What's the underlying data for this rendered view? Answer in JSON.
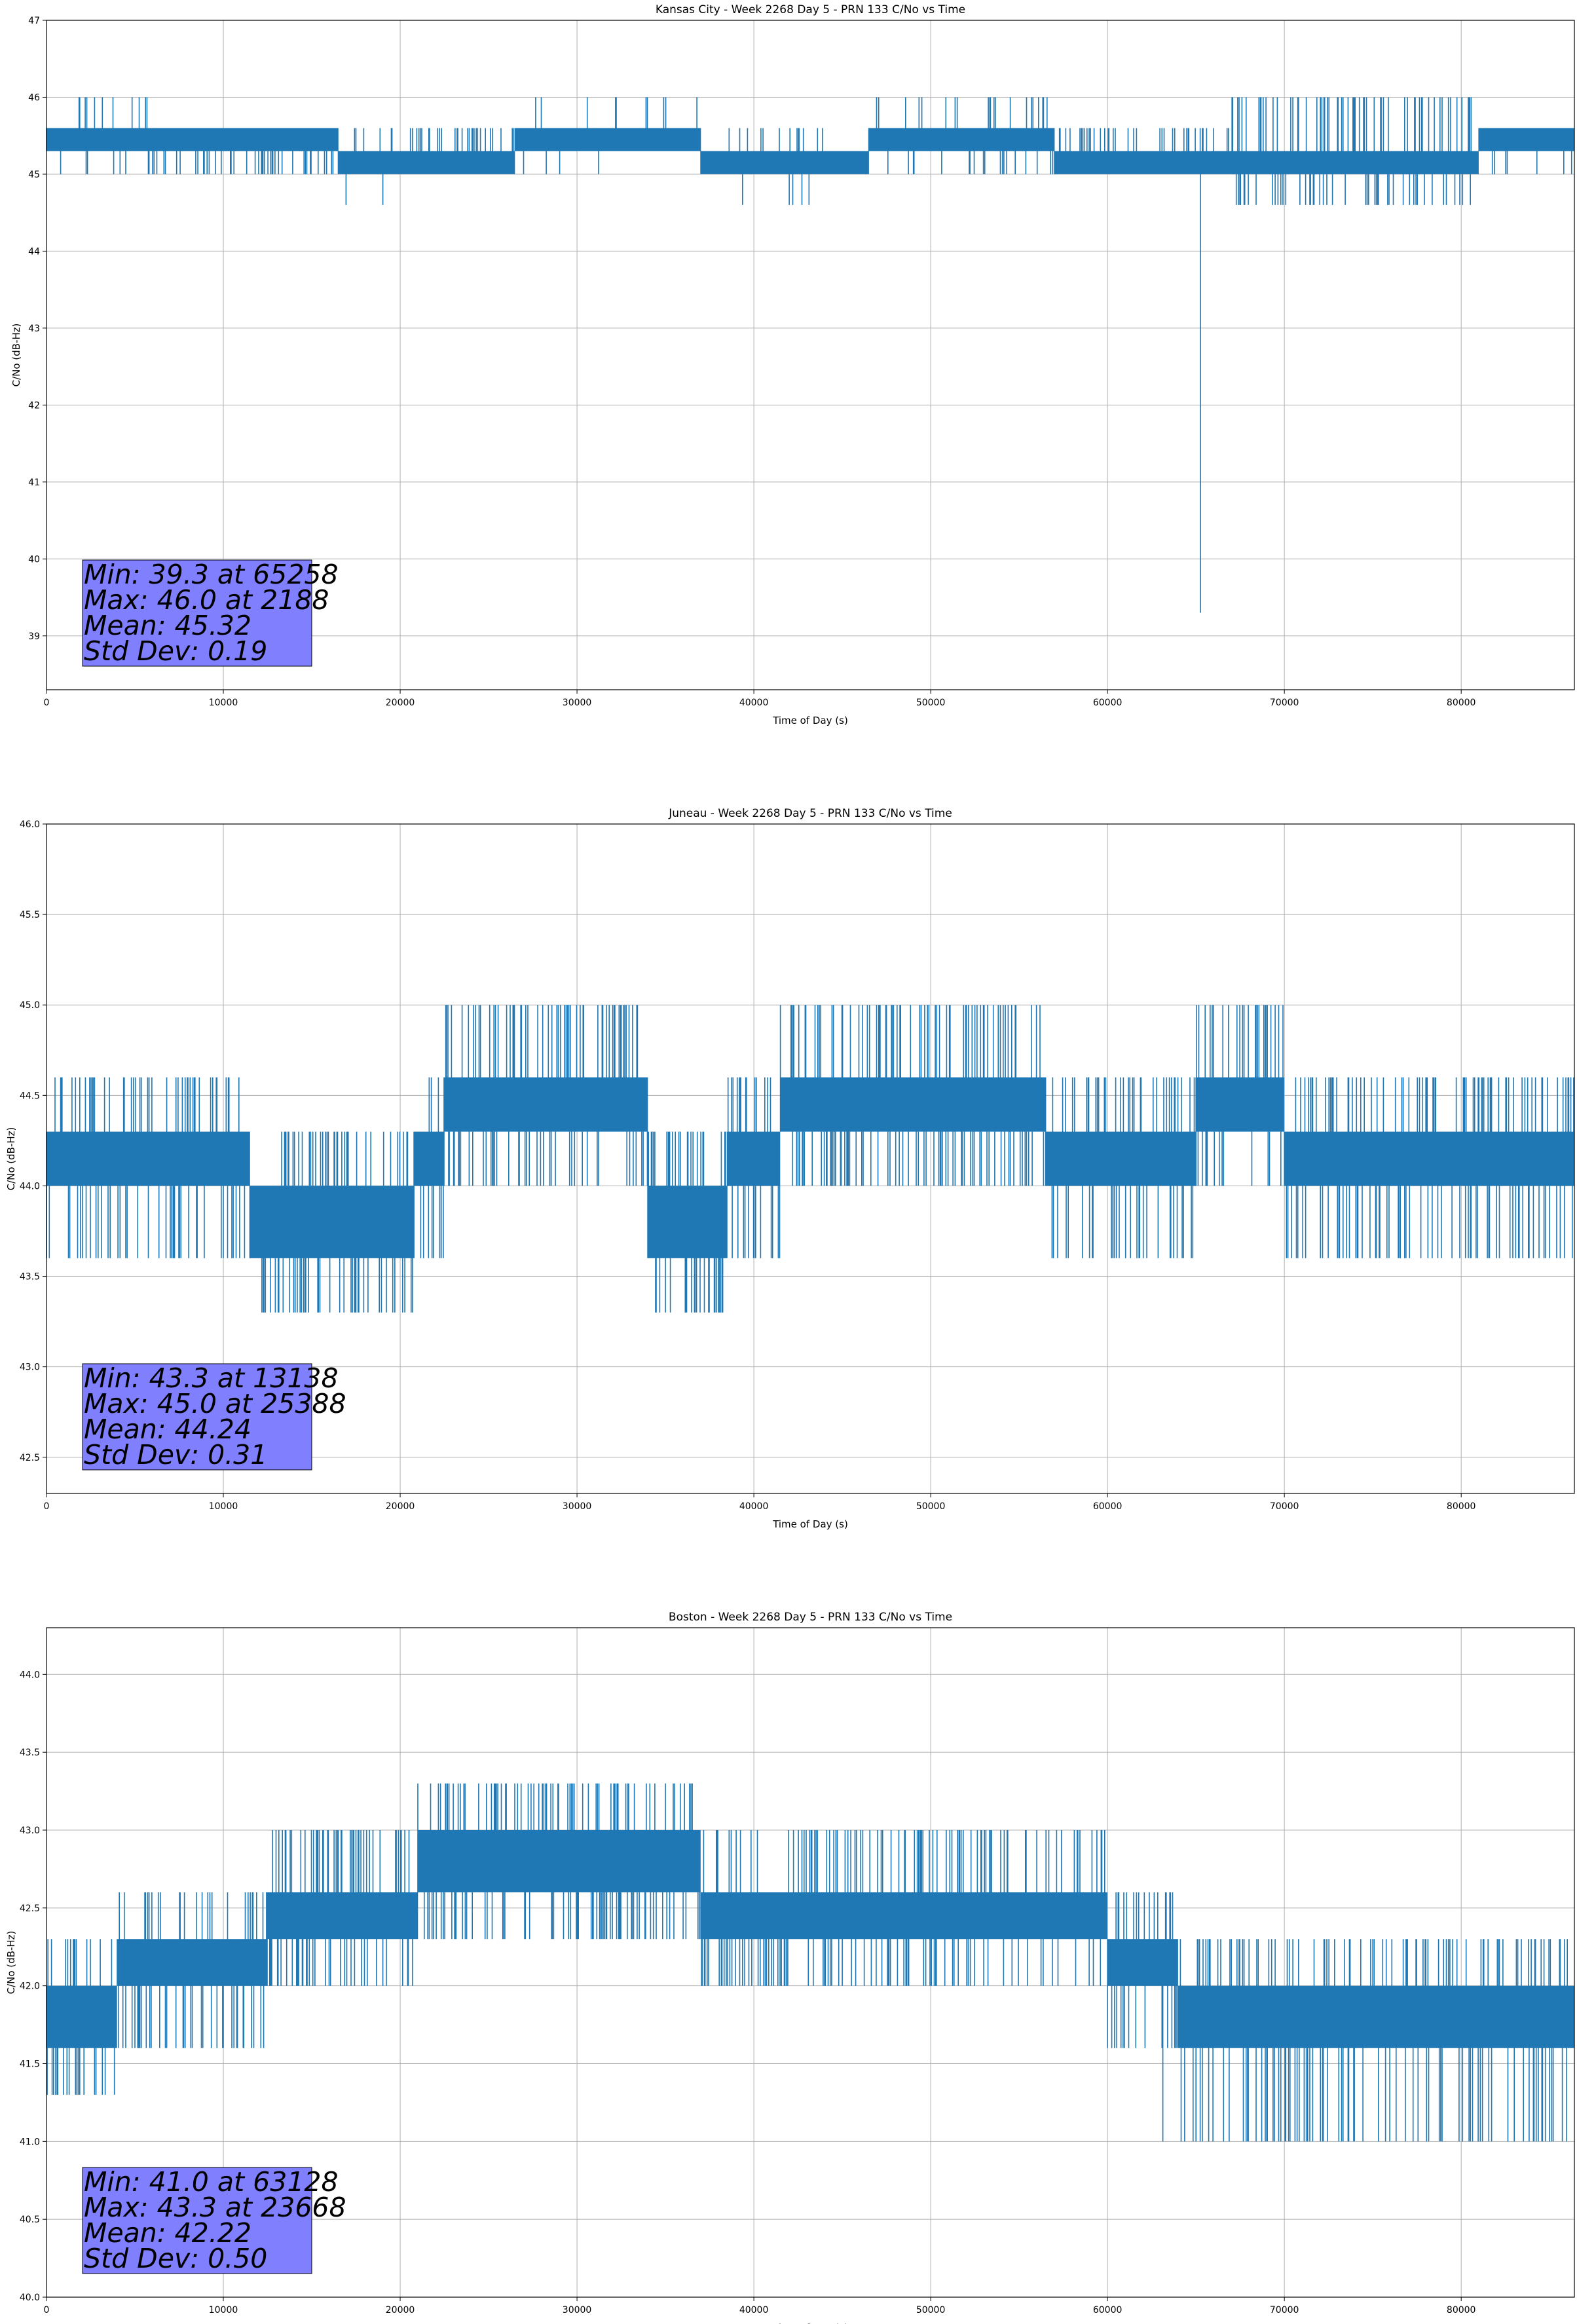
{
  "colors": {
    "series": "#1f77b4",
    "grid": "#b0b0b0",
    "stats_box": "#8080ff"
  },
  "chart_data": [
    {
      "type": "line",
      "title": "Kansas City - Week 2268 Day 5 - PRN 133 C/No vs Time",
      "xlabel": "Time of Day (s)",
      "ylabel": "C/No (dB-Hz)",
      "xlim": [
        0,
        86400
      ],
      "ylim": [
        38.3,
        47
      ],
      "xticks": [
        0,
        10000,
        20000,
        30000,
        40000,
        50000,
        60000,
        70000,
        80000
      ],
      "yticks": [
        39,
        40,
        41,
        42,
        43,
        44,
        45,
        46,
        47
      ],
      "ytick_decimals": 0,
      "grid": true,
      "legend": "none",
      "series": [
        {
          "segments": [
            {
              "x": [
                0,
                6000
              ],
              "band": [
                45.3,
                45.6
              ],
              "flicker": [
                45.0,
                46.0
              ],
              "density": "medium"
            },
            {
              "x": [
                6000,
                16500
              ],
              "band": [
                45.3,
                45.6
              ],
              "flicker": [
                45.0,
                45.3
              ],
              "density": "high"
            },
            {
              "x": [
                16500,
                20500
              ],
              "band": [
                45.0,
                45.3
              ],
              "flicker": [
                44.6,
                45.6
              ],
              "density": "medium"
            },
            {
              "x": [
                20500,
                26500
              ],
              "band": [
                45.0,
                45.3
              ],
              "flicker": [
                45.3,
                45.6
              ],
              "density": "high"
            },
            {
              "x": [
                26500,
                37000
              ],
              "band": [
                45.3,
                45.6
              ],
              "flicker": [
                45.0,
                46.0
              ],
              "density": "low"
            },
            {
              "x": [
                37000,
                46500
              ],
              "band": [
                45.0,
                45.3
              ],
              "flicker": [
                44.6,
                45.6
              ],
              "density": "low"
            },
            {
              "x": [
                46500,
                57000
              ],
              "band": [
                45.3,
                45.6
              ],
              "flicker": [
                45.0,
                46.0
              ],
              "density": "medium"
            },
            {
              "x": [
                57000,
                67000
              ],
              "band": [
                45.0,
                45.3
              ],
              "flicker": [
                45.3,
                45.6
              ],
              "density": "high"
            },
            {
              "x": [
                67000,
                81000
              ],
              "band": [
                45.0,
                45.3
              ],
              "flicker": [
                44.6,
                46.0
              ],
              "density": "high"
            },
            {
              "x": [
                81000,
                86400
              ],
              "band": [
                45.3,
                45.6
              ],
              "flicker": [
                45.0,
                45.6
              ],
              "density": "medium"
            }
          ],
          "min": {
            "x": 65258,
            "y": 39.3
          },
          "max": {
            "x": 2188,
            "y": 46.0
          }
        }
      ],
      "stats": {
        "min": "Min: 39.3 at 65258",
        "max": "Max: 46.0 at 2188",
        "mean": "Mean: 45.32",
        "std": "Std Dev: 0.19"
      }
    },
    {
      "type": "line",
      "title": "Juneau - Week 2268 Day 5 - PRN 133 C/No vs Time",
      "xlabel": "Time of Day (s)",
      "ylabel": "C/No (dB-Hz)",
      "xlim": [
        0,
        86400
      ],
      "ylim": [
        42.3,
        46.0
      ],
      "xticks": [
        0,
        10000,
        20000,
        30000,
        40000,
        50000,
        60000,
        70000,
        80000
      ],
      "yticks": [
        42.5,
        43.0,
        43.5,
        44.0,
        44.5,
        45.0,
        45.5,
        46.0
      ],
      "ytick_decimals": 1,
      "grid": true,
      "legend": "none",
      "series": [
        {
          "segments": [
            {
              "x": [
                0,
                11500
              ],
              "band": [
                44.0,
                44.3
              ],
              "flicker": [
                43.6,
                44.6
              ],
              "density": "high"
            },
            {
              "x": [
                11500,
                20800
              ],
              "band": [
                43.6,
                44.0
              ],
              "flicker": [
                43.3,
                44.3
              ],
              "density": "high"
            },
            {
              "x": [
                20800,
                22500
              ],
              "band": [
                44.0,
                44.3
              ],
              "flicker": [
                43.6,
                44.6
              ],
              "density": "high"
            },
            {
              "x": [
                22500,
                34000
              ],
              "band": [
                44.3,
                44.6
              ],
              "flicker": [
                44.0,
                45.0
              ],
              "density": "high"
            },
            {
              "x": [
                34000,
                38500
              ],
              "band": [
                43.6,
                44.0
              ],
              "flicker": [
                43.3,
                44.3
              ],
              "density": "high"
            },
            {
              "x": [
                38500,
                41500
              ],
              "band": [
                44.0,
                44.3
              ],
              "flicker": [
                43.6,
                44.6
              ],
              "density": "high"
            },
            {
              "x": [
                41500,
                56500
              ],
              "band": [
                44.3,
                44.6
              ],
              "flicker": [
                44.0,
                45.0
              ],
              "density": "high"
            },
            {
              "x": [
                56500,
                65000
              ],
              "band": [
                44.0,
                44.3
              ],
              "flicker": [
                43.6,
                44.6
              ],
              "density": "high"
            },
            {
              "x": [
                65000,
                70000
              ],
              "band": [
                44.3,
                44.6
              ],
              "flicker": [
                44.0,
                45.0
              ],
              "density": "high"
            },
            {
              "x": [
                70000,
                86400
              ],
              "band": [
                44.0,
                44.3
              ],
              "flicker": [
                43.6,
                44.6
              ],
              "density": "high"
            }
          ],
          "min": {
            "x": 13138,
            "y": 43.3
          },
          "max": {
            "x": 25388,
            "y": 45.0
          }
        }
      ],
      "stats": {
        "min": "Min: 43.3 at 13138",
        "max": "Max: 45.0 at 25388",
        "mean": "Mean: 44.24",
        "std": "Std Dev: 0.31"
      }
    },
    {
      "type": "line",
      "title": "Boston - Week 2268 Day 5 - PRN 133 C/No vs Time",
      "xlabel": "Time of Day (s)",
      "ylabel": "C/No (dB-Hz)",
      "xlim": [
        0,
        86400
      ],
      "ylim": [
        40.0,
        44.3
      ],
      "xticks": [
        0,
        10000,
        20000,
        30000,
        40000,
        50000,
        60000,
        70000,
        80000
      ],
      "yticks": [
        40.0,
        40.5,
        41.0,
        41.5,
        42.0,
        42.5,
        43.0,
        43.5,
        44.0
      ],
      "ytick_decimals": 1,
      "grid": true,
      "legend": "none",
      "series": [
        {
          "segments": [
            {
              "x": [
                0,
                4000
              ],
              "band": [
                41.6,
                42.0
              ],
              "flicker": [
                41.3,
                42.3
              ],
              "density": "high"
            },
            {
              "x": [
                4000,
                12500
              ],
              "band": [
                42.0,
                42.3
              ],
              "flicker": [
                41.6,
                42.6
              ],
              "density": "high"
            },
            {
              "x": [
                12500,
                21000
              ],
              "band": [
                42.3,
                42.6
              ],
              "flicker": [
                42.0,
                43.0
              ],
              "density": "high"
            },
            {
              "x": [
                21000,
                37000
              ],
              "band": [
                42.6,
                43.0
              ],
              "flicker": [
                42.3,
                43.3
              ],
              "density": "high"
            },
            {
              "x": [
                37000,
                60000
              ],
              "band": [
                42.3,
                42.6
              ],
              "flicker": [
                42.0,
                43.0
              ],
              "density": "high"
            },
            {
              "x": [
                60000,
                64000
              ],
              "band": [
                42.0,
                42.3
              ],
              "flicker": [
                41.6,
                42.6
              ],
              "density": "high"
            },
            {
              "x": [
                64000,
                86400
              ],
              "band": [
                41.6,
                42.0
              ],
              "flicker": [
                41.0,
                42.3
              ],
              "density": "high"
            }
          ],
          "min": {
            "x": 63128,
            "y": 41.0
          },
          "max": {
            "x": 23668,
            "y": 43.3
          }
        }
      ],
      "stats": {
        "min": "Min: 41.0 at 63128",
        "max": "Max: 43.3 at 23668",
        "mean": "Mean: 42.22",
        "std": "Std Dev: 0.50"
      }
    }
  ]
}
